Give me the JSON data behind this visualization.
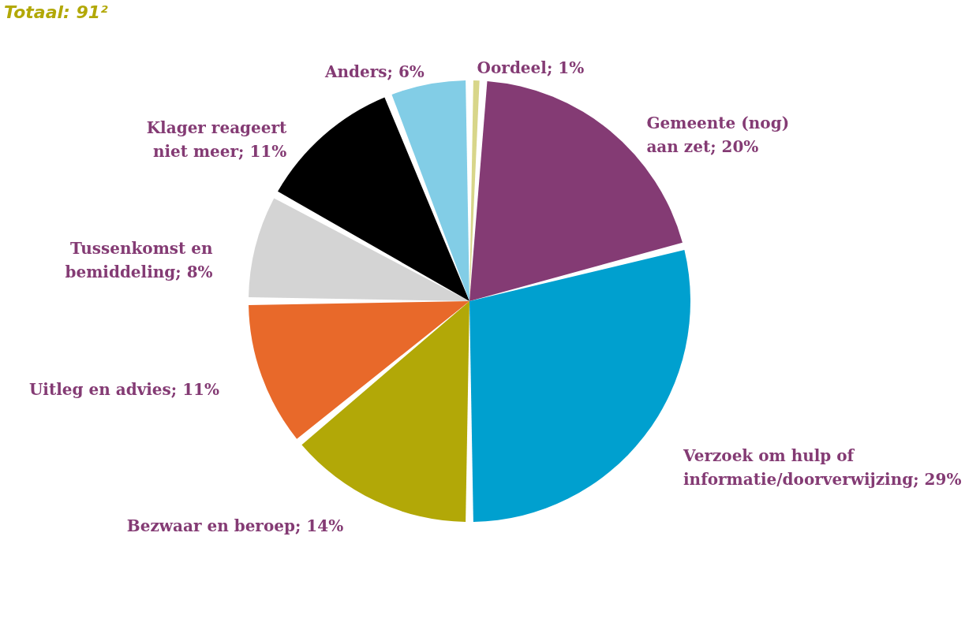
{
  "chart_data": {
    "type": "pie",
    "title": "Totaal: 91²",
    "categories": [
      "Oordeel",
      "Gemeente (nog) aan zet",
      "Verzoek om hulp of informatie/doorverwijzing",
      "Bezwaar en beroep",
      "Uitleg en advies",
      "Tussenkomst en bemiddeling",
      "Klager reageert niet meer",
      "Anders"
    ],
    "values": [
      1,
      20,
      29,
      14,
      11,
      8,
      11,
      6
    ],
    "value_labels": [
      "1%",
      "20%",
      "29%",
      "14%",
      "11%",
      "8%",
      "11%",
      "6%"
    ],
    "colors": [
      "#d8d68a",
      "#843b74",
      "#00a0cf",
      "#b2a807",
      "#e8692a",
      "#d4d4d4",
      "#000000",
      "#82cde6"
    ],
    "legend": false
  }
}
